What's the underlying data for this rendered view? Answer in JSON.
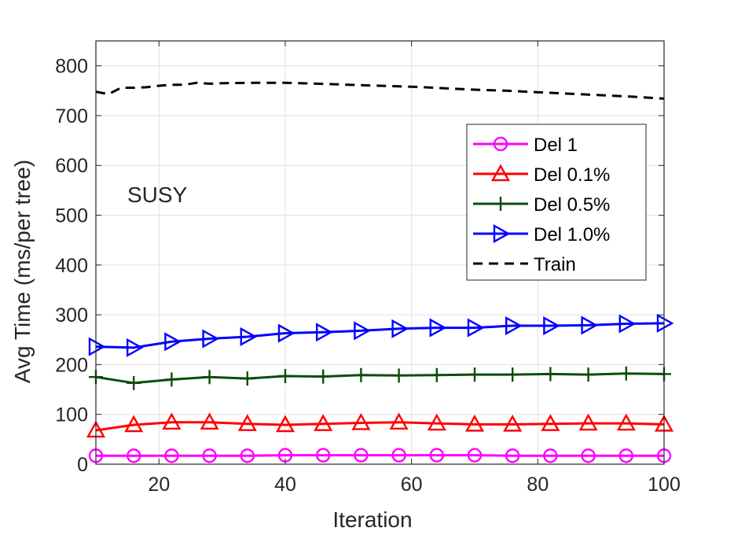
{
  "colors": {
    "del1": "#ff00ff",
    "del01": "#ff0000",
    "del05": "#0b4d0b",
    "del10": "#0000ff",
    "train": "#000000",
    "grid": "#e0e0e0",
    "annotation": "#ff0000"
  },
  "chart_data": {
    "type": "line",
    "title": "",
    "xlabel": "Iteration",
    "ylabel": "Avg Time (ms/per tree)",
    "xlim": [
      10,
      100
    ],
    "ylim": [
      0,
      850
    ],
    "xticks": [
      20,
      40,
      60,
      80,
      100
    ],
    "yticks": [
      0,
      100,
      200,
      300,
      400,
      500,
      600,
      700,
      800
    ],
    "grid": true,
    "legend_position": "top-right",
    "annotation": "SUSY",
    "series": [
      {
        "name": "Del 1",
        "color": "#ff00ff",
        "marker": "circle",
        "dash": "solid",
        "x": [
          10,
          16,
          22,
          28,
          34,
          40,
          46,
          52,
          58,
          64,
          70,
          76,
          82,
          88,
          94,
          100
        ],
        "y": [
          17,
          17,
          17,
          17,
          17,
          18,
          18,
          18,
          18,
          18,
          18,
          17,
          17,
          17,
          17,
          17
        ]
      },
      {
        "name": "Del 0.1%",
        "color": "#ff0000",
        "marker": "triangle-up",
        "dash": "solid",
        "x": [
          10,
          16,
          22,
          28,
          34,
          40,
          46,
          52,
          58,
          64,
          70,
          76,
          82,
          88,
          94,
          100
        ],
        "y": [
          68,
          79,
          84,
          84,
          81,
          79,
          81,
          83,
          84,
          82,
          80,
          80,
          81,
          82,
          82,
          80
        ]
      },
      {
        "name": "Del 0.5%",
        "color": "#0b4d0b",
        "marker": "plus",
        "dash": "solid",
        "x": [
          10,
          16,
          22,
          28,
          34,
          40,
          46,
          52,
          58,
          64,
          70,
          76,
          82,
          88,
          94,
          100
        ],
        "y": [
          175,
          163,
          170,
          175,
          172,
          177,
          176,
          179,
          178,
          179,
          180,
          180,
          181,
          180,
          182,
          181
        ]
      },
      {
        "name": "Del 1.0%",
        "color": "#0000ff",
        "marker": "triangle-right",
        "dash": "solid",
        "x": [
          10,
          16,
          22,
          28,
          34,
          40,
          46,
          52,
          58,
          64,
          70,
          76,
          82,
          88,
          94,
          100
        ],
        "y": [
          236,
          234,
          246,
          252,
          256,
          263,
          265,
          268,
          272,
          274,
          274,
          278,
          278,
          279,
          282,
          283
        ]
      },
      {
        "name": "Train",
        "color": "#000000",
        "marker": "none",
        "dash": "dashed",
        "x": [
          10,
          12,
          14,
          16,
          18,
          20,
          22,
          24,
          26,
          28,
          30,
          35,
          40,
          45,
          50,
          55,
          60,
          65,
          70,
          75,
          80,
          85,
          90,
          95,
          100
        ],
        "y": [
          748,
          743,
          756,
          756,
          757,
          760,
          762,
          762,
          766,
          764,
          765,
          766,
          766,
          764,
          762,
          760,
          758,
          755,
          752,
          750,
          747,
          744,
          741,
          738,
          734
        ]
      }
    ]
  }
}
